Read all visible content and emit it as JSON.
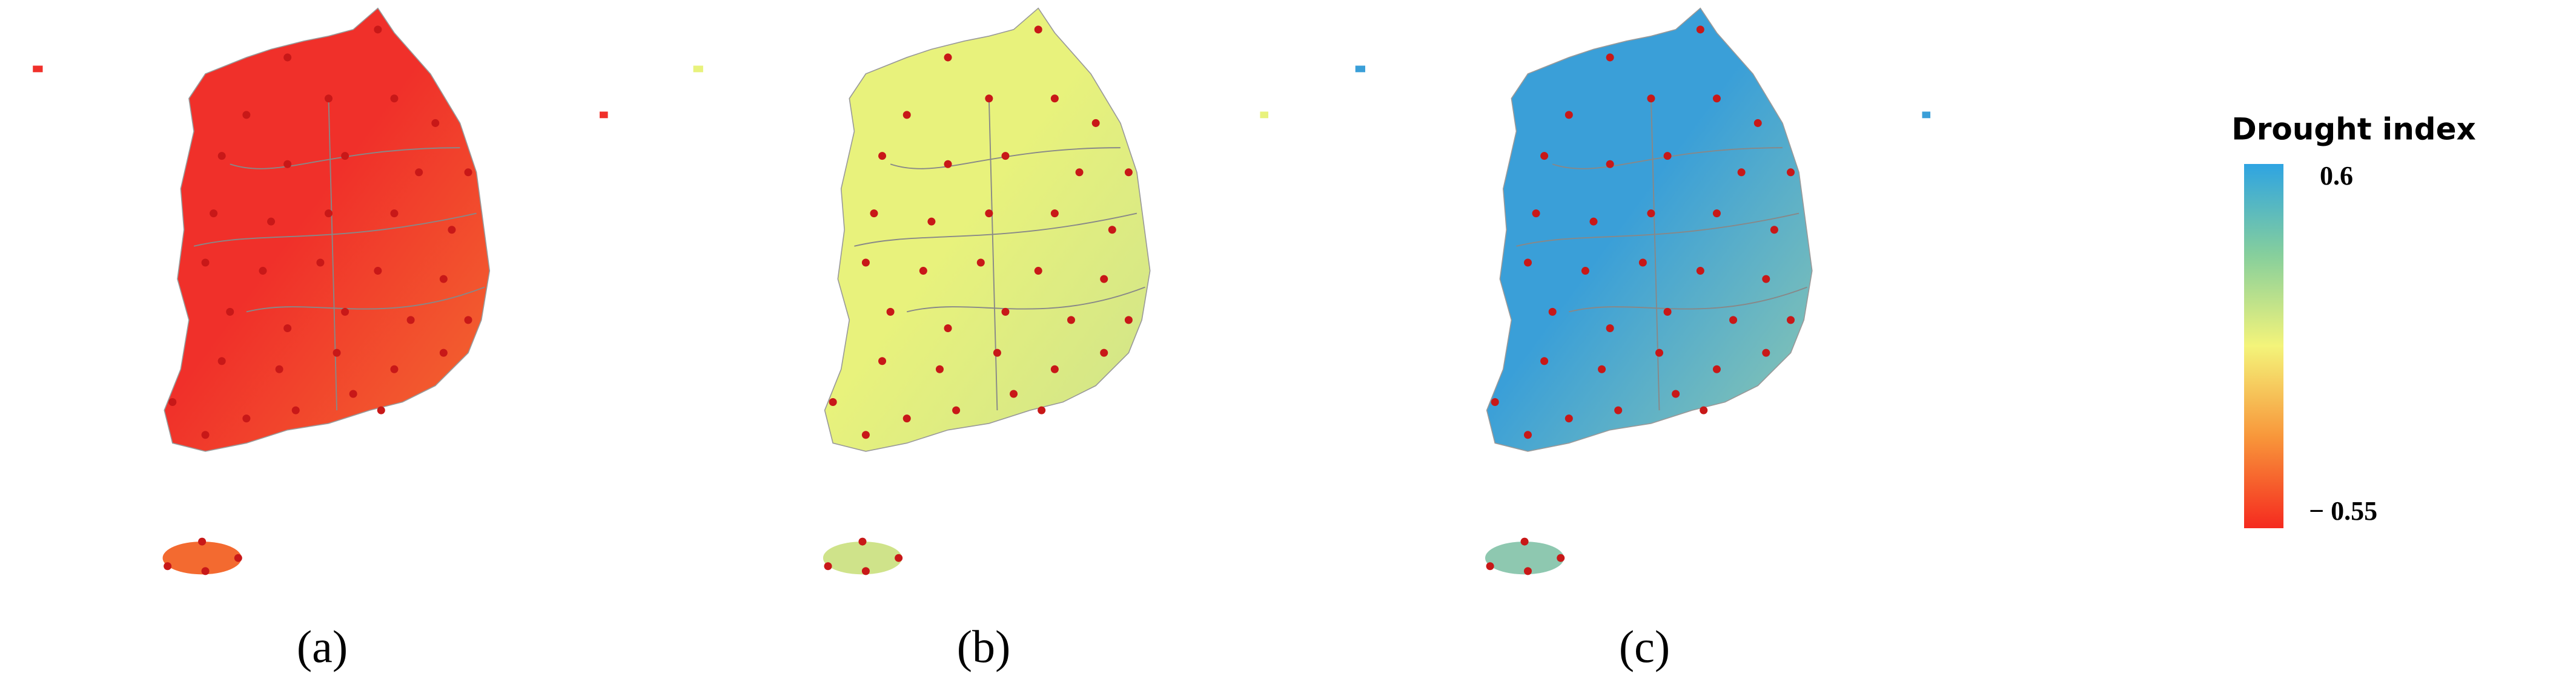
{
  "panels": [
    {
      "label": "(a)",
      "colors": [
        "#f0302a",
        "#f36a30"
      ]
    },
    {
      "label": "(b)",
      "colors": [
        "#e8f27c",
        "#cfe38a"
      ]
    },
    {
      "label": "(c)",
      "colors": [
        "#3a9fd8",
        "#8ec8b0"
      ]
    }
  ],
  "legend": {
    "title": "Drought index",
    "range": [
      -0.6,
      0.65
    ],
    "ticks": [
      0.6,
      {
        "value": -0.55,
        "label": "− 0.55"
      }
    ],
    "colors": [
      "#f52a1f",
      "#f8963a",
      "#f4f47a",
      "#86cf9c",
      "#2ea4e2"
    ]
  }
}
